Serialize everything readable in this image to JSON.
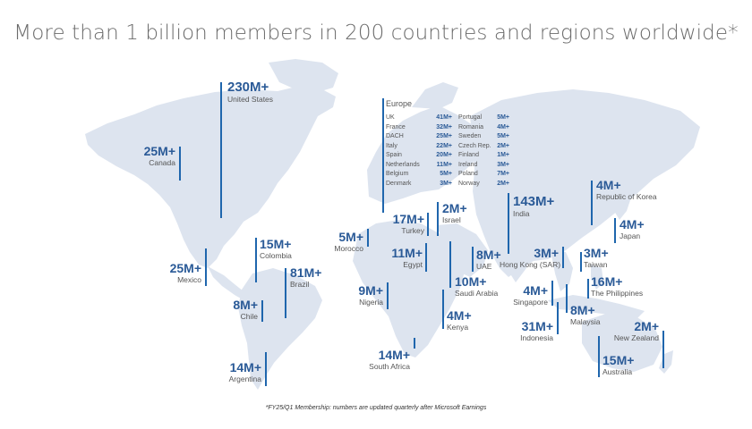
{
  "title": "More than 1 billion members in 200 countries and regions worldwide*",
  "footnote": "*FY25/Q1 Membership: numbers are updated quarterly after Microsoft Earnings",
  "colors": {
    "land": "#dde4ef",
    "accent": "#2a5a97",
    "bar": "#1f66ad"
  },
  "regions": [
    {
      "id": "united-states",
      "value": "230M+",
      "name": "United States"
    },
    {
      "id": "canada",
      "value": "25M+",
      "name": "Canada"
    },
    {
      "id": "mexico",
      "value": "25M+",
      "name": "Mexico"
    },
    {
      "id": "colombia",
      "value": "15M+",
      "name": "Colombia"
    },
    {
      "id": "brazil",
      "value": "81M+",
      "name": "Brazil"
    },
    {
      "id": "chile",
      "value": "8M+",
      "name": "Chile"
    },
    {
      "id": "argentina",
      "value": "14M+",
      "name": "Argentina"
    },
    {
      "id": "morocco",
      "value": "5M+",
      "name": "Morocco"
    },
    {
      "id": "turkey",
      "value": "17M+",
      "name": "Turkey"
    },
    {
      "id": "israel",
      "value": "2M+",
      "name": "Israel"
    },
    {
      "id": "egypt",
      "value": "11M+",
      "name": "Egypt"
    },
    {
      "id": "uae",
      "value": "8M+",
      "name": "UAE"
    },
    {
      "id": "saudi-arabia",
      "value": "10M+",
      "name": "Saudi Arabia"
    },
    {
      "id": "nigeria",
      "value": "9M+",
      "name": "Nigeria"
    },
    {
      "id": "kenya",
      "value": "4M+",
      "name": "Kenya"
    },
    {
      "id": "south-africa",
      "value": "14M+",
      "name": "South Africa"
    },
    {
      "id": "india",
      "value": "143M+",
      "name": "India"
    },
    {
      "id": "hong-kong",
      "value": "3M+",
      "name": "Hong Kong (SAR)"
    },
    {
      "id": "singapore",
      "value": "4M+",
      "name": "Singapore"
    },
    {
      "id": "indonesia",
      "value": "31M+",
      "name": "Indonesia"
    },
    {
      "id": "malaysia",
      "value": "8M+",
      "name": "Malaysia"
    },
    {
      "id": "republic-of-korea",
      "value": "4M+",
      "name": "Republic of Korea"
    },
    {
      "id": "japan",
      "value": "4M+",
      "name": "Japan"
    },
    {
      "id": "taiwan",
      "value": "3M+",
      "name": "Taiwan"
    },
    {
      "id": "philippines",
      "value": "16M+",
      "name": "The Philippines"
    },
    {
      "id": "new-zealand",
      "value": "2M+",
      "name": "New Zealand"
    },
    {
      "id": "australia",
      "value": "15M+",
      "name": "Australia"
    }
  ],
  "europe": {
    "title": "Europe",
    "left": [
      {
        "name": "UK",
        "value": "41M+"
      },
      {
        "name": "France",
        "value": "32M+"
      },
      {
        "name": "DACH",
        "value": "25M+"
      },
      {
        "name": "Italy",
        "value": "22M+"
      },
      {
        "name": "Spain",
        "value": "20M+"
      },
      {
        "name": "Netherlands",
        "value": "11M+"
      },
      {
        "name": "Belgium",
        "value": "5M+"
      },
      {
        "name": "Denmark",
        "value": "3M+"
      }
    ],
    "right": [
      {
        "name": "Portugal",
        "value": "5M+"
      },
      {
        "name": "Romania",
        "value": "4M+"
      },
      {
        "name": "Sweden",
        "value": "5M+"
      },
      {
        "name": "Czech Rep.",
        "value": "2M+"
      },
      {
        "name": "Finland",
        "value": "1M+"
      },
      {
        "name": "Ireland",
        "value": "3M+"
      },
      {
        "name": "Poland",
        "value": "7M+"
      },
      {
        "name": "Norway",
        "value": "2M+"
      }
    ]
  }
}
